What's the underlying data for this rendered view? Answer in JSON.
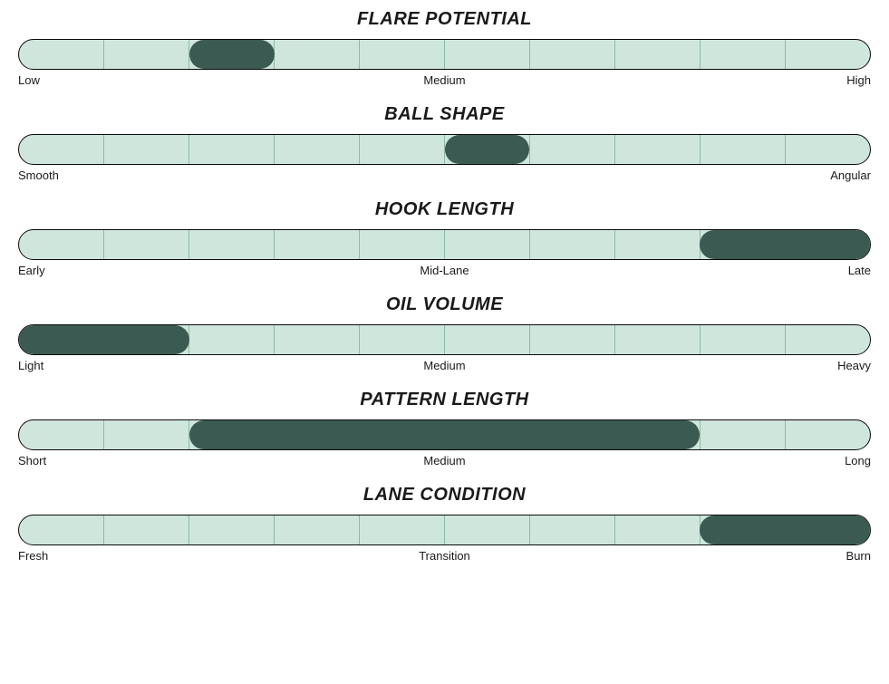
{
  "layout": {
    "track_height": 34,
    "title_fontsize": 20,
    "segments": 10,
    "track_bg": "#cfe6dc",
    "track_border": "#0a0a0a",
    "segment_border": "#8fb8a9",
    "fill_color": "#3a5a52",
    "label_fontsize": 13,
    "label_color": "#1a1a1a"
  },
  "charts": [
    {
      "id": "flare-potential",
      "title": "FLARE POTENTIAL",
      "label_left": "Low",
      "label_center": "Medium",
      "label_right": "High",
      "fill_start": 2,
      "fill_end": 3
    },
    {
      "id": "ball-shape",
      "title": "BALL SHAPE",
      "label_left": "Smooth",
      "label_center": "",
      "label_right": "Angular",
      "fill_start": 5,
      "fill_end": 6
    },
    {
      "id": "hook-length",
      "title": "HOOK LENGTH",
      "label_left": "Early",
      "label_center": "Mid-Lane",
      "label_right": "Late",
      "fill_start": 8,
      "fill_end": 10
    },
    {
      "id": "oil-volume",
      "title": "OIL VOLUME",
      "label_left": "Light",
      "label_center": "Medium",
      "label_right": "Heavy",
      "fill_start": 0,
      "fill_end": 2
    },
    {
      "id": "pattern-length",
      "title": "PATTERN LENGTH",
      "label_left": "Short",
      "label_center": "Medium",
      "label_right": "Long",
      "fill_start": 2,
      "fill_end": 8
    },
    {
      "id": "lane-condition",
      "title": "LANE CONDITION",
      "label_left": "Fresh",
      "label_center": "Transition",
      "label_right": "Burn",
      "fill_start": 8,
      "fill_end": 10
    }
  ]
}
